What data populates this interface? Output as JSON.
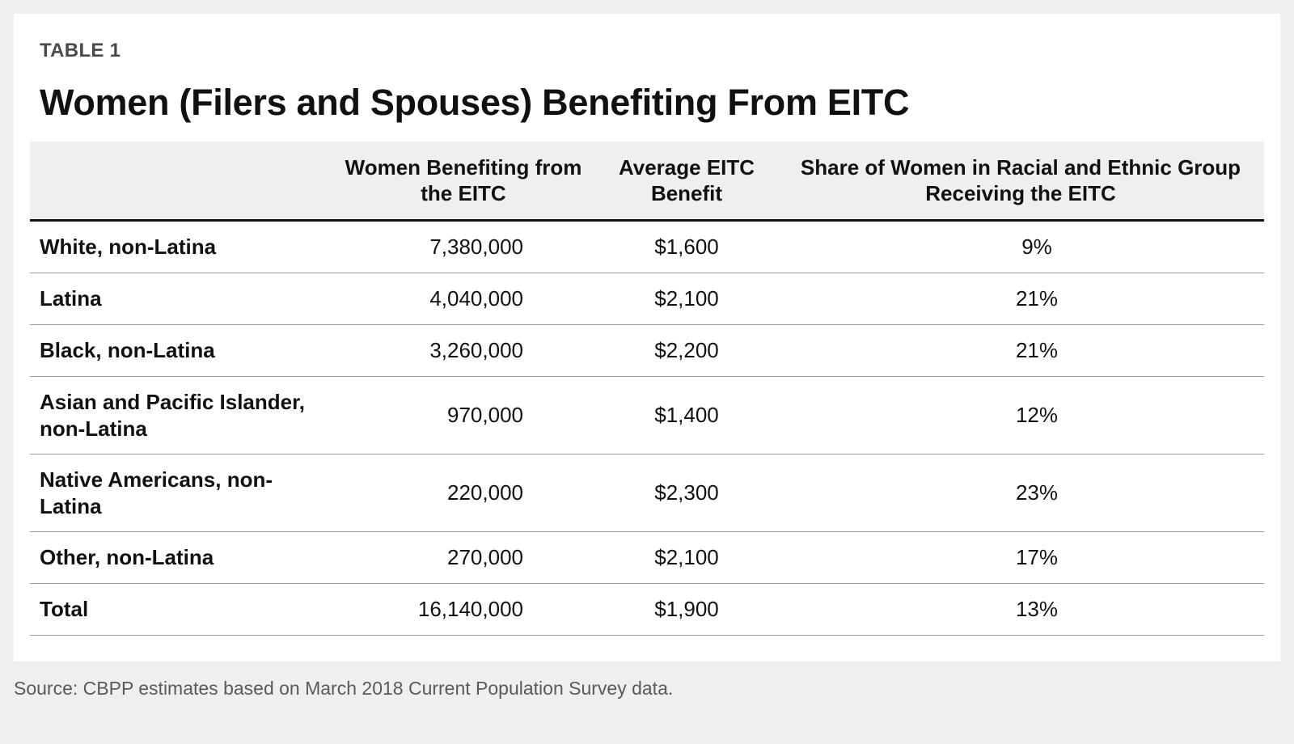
{
  "table": {
    "eyebrow": "TABLE 1",
    "title": "Women (Filers and Spouses) Benefiting From EITC",
    "headers": [
      "",
      "Women Benefiting from the EITC",
      "Average EITC Benefit",
      "Share of Women in Racial and Ethnic Group Receiving the EITC"
    ],
    "rows": [
      {
        "group": "White, non-Latina",
        "women": "7,380,000",
        "benefit": "$1,600",
        "share": "9%"
      },
      {
        "group": "Latina",
        "women": "4,040,000",
        "benefit": "$2,100",
        "share": "21%"
      },
      {
        "group": "Black, non-Latina",
        "women": "3,260,000",
        "benefit": "$2,200",
        "share": "21%"
      },
      {
        "group": "Asian and Pacific Islander, non-Latina",
        "women": "970,000",
        "benefit": "$1,400",
        "share": "12%"
      },
      {
        "group": "Native Americans, non-Latina",
        "women": "220,000",
        "benefit": "$2,300",
        "share": "23%"
      },
      {
        "group": "Other, non-Latina",
        "women": "270,000",
        "benefit": "$2,100",
        "share": "17%"
      },
      {
        "group": "Total",
        "women": "16,140,000",
        "benefit": "$1,900",
        "share": "13%"
      }
    ],
    "source": "Source: CBPP estimates based on March 2018 Current Population Survey data."
  }
}
